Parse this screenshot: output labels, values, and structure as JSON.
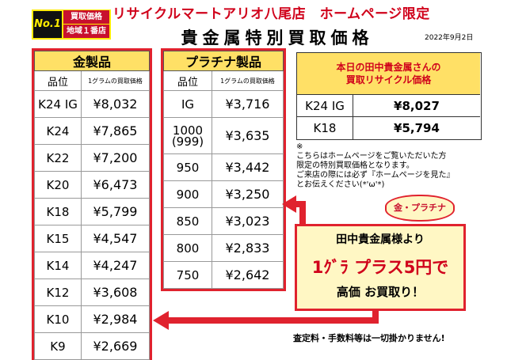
{
  "header": {
    "badge_no1": "No.1",
    "badge_top": "買取価格",
    "badge_bottom": "地域１番店",
    "title": "リサイクルマートアリオ八尾店　ホームページ限定",
    "page_title": "貴金属特別買取価格",
    "date": "2022年9月2日"
  },
  "gold": {
    "title": "金製品",
    "col_grade": "品位",
    "col_price": "1グラムの買取価格",
    "rows": [
      {
        "grade": "K24 IG",
        "price": "¥8,032"
      },
      {
        "grade": "K24",
        "price": "¥7,865"
      },
      {
        "grade": "K22",
        "price": "¥7,200"
      },
      {
        "grade": "K20",
        "price": "¥6,473"
      },
      {
        "grade": "K18",
        "price": "¥5,799"
      },
      {
        "grade": "K15",
        "price": "¥4,547"
      },
      {
        "grade": "K14",
        "price": "¥4,247"
      },
      {
        "grade": "K12",
        "price": "¥3,608"
      },
      {
        "grade": "K10",
        "price": "¥2,984"
      },
      {
        "grade": "K9",
        "price": "¥2,669"
      }
    ]
  },
  "platinum": {
    "title": "プラチナ製品",
    "col_grade": "品位",
    "col_price": "1グラムの買取価格",
    "rows": [
      {
        "grade": "IG",
        "grade2": "",
        "price": "¥3,716"
      },
      {
        "grade": "1000",
        "grade2": "(999)",
        "price": "¥3,635"
      },
      {
        "grade": "950",
        "grade2": "",
        "price": "¥3,442"
      },
      {
        "grade": "900",
        "grade2": "",
        "price": "¥3,250"
      },
      {
        "grade": "850",
        "grade2": "",
        "price": "¥3,023"
      },
      {
        "grade": "800",
        "grade2": "",
        "price": "¥2,833"
      },
      {
        "grade": "750",
        "grade2": "",
        "price": "¥2,642"
      }
    ]
  },
  "today": {
    "line1": "本日の田中貴金属さんの",
    "line2": "買取リサイクル価格",
    "rows": [
      {
        "grade": "K24 IG",
        "price": "¥8,027"
      },
      {
        "grade": "K18",
        "price": "¥5,794"
      }
    ]
  },
  "note": {
    "mark": "※",
    "line1": "こちらはホームページをご覧いただいた方",
    "line2": "限定の特別買取価格となります。",
    "line3": "ご来店の際には必ず『ホームページを見た』",
    "line4": "とお伝えください(*'ω'*)"
  },
  "promo": {
    "bubble": "金・プラチナ",
    "line1": "田中貴金属様より",
    "line2": "1ｸﾞﾗ プラス5円で",
    "line3": "高価 お買取り！"
  },
  "footer": "査定料・手数料等は一切掛かりません!",
  "colors": {
    "red": "#e0222e",
    "gold_header": "#ffe066",
    "platinum_header": "#d9def0"
  }
}
